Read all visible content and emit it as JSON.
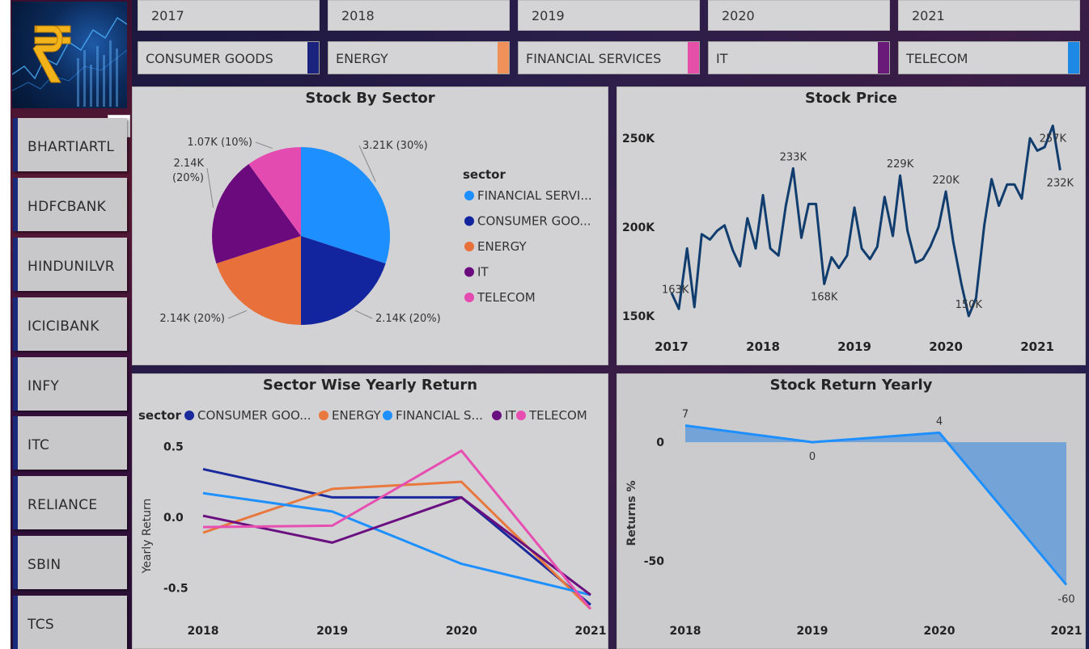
{
  "years": [
    "2017",
    "2018",
    "2019",
    "2020",
    "2021"
  ],
  "sectors": [
    {
      "label": "CONSUMER GOODS",
      "color": "#1a237e"
    },
    {
      "label": "ENERGY",
      "color": "#f0915a"
    },
    {
      "label": "FINANCIAL SERVICES",
      "color": "#e64fa8"
    },
    {
      "label": "IT",
      "color": "#6a1b7a"
    },
    {
      "label": "TELECOM",
      "color": "#1e88e5"
    }
  ],
  "stocks": [
    "BHARTIARTL",
    "HDFCBANK",
    "HINDUNILVR",
    "ICICIBANK",
    "INFY",
    "ITC",
    "RELIANCE",
    "SBIN",
    "TCS"
  ],
  "more_label": "···",
  "panels": {
    "stock_by_sector": {
      "title": "Stock By Sector"
    },
    "stock_price": {
      "title": "Stock Price"
    },
    "sector_wise": {
      "title": "Sector Wise Yearly Return"
    },
    "stock_return": {
      "title": "Stock Return Yearly"
    }
  },
  "chart_data": [
    {
      "type": "pie",
      "title": "Stock By Sector",
      "legend_title": "sector",
      "legend_placement": "right",
      "slices": [
        {
          "name": "FINANCIAL SERVI...",
          "value": 3.21,
          "label": "3.21K (30%)",
          "color": "#1e8fff"
        },
        {
          "name": "CONSUMER GOO...",
          "value": 2.14,
          "label": "2.14K (20%)",
          "color": "#13259e"
        },
        {
          "name": "ENERGY",
          "value": 2.14,
          "label": "2.14K (20%)",
          "color": "#e8703a"
        },
        {
          "name": "IT",
          "value": 2.14,
          "label": "2.14K (20%)",
          "color": "#6b0a7d"
        },
        {
          "name": "TELECOM",
          "value": 1.07,
          "label": "1.07K (10%)",
          "color": "#e44bb1"
        }
      ]
    },
    {
      "type": "line",
      "title": "Stock Price",
      "color": "#103d6e",
      "x_ticks": [
        "2017",
        "2018",
        "2019",
        "2020",
        "2021"
      ],
      "y_ticks": [
        "150K",
        "200K",
        "250K"
      ],
      "ylim": [
        150,
        250
      ],
      "xlim": [
        2017,
        2021.3
      ],
      "x": [
        2017.0,
        2017.08,
        2017.17,
        2017.25,
        2017.33,
        2017.42,
        2017.5,
        2017.58,
        2017.67,
        2017.75,
        2017.83,
        2017.92,
        2018.0,
        2018.08,
        2018.17,
        2018.25,
        2018.33,
        2018.42,
        2018.5,
        2018.58,
        2018.67,
        2018.75,
        2018.83,
        2018.92,
        2019.0,
        2019.08,
        2019.17,
        2019.25,
        2019.33,
        2019.42,
        2019.5,
        2019.58,
        2019.67,
        2019.75,
        2019.83,
        2019.92,
        2020.0,
        2020.08,
        2020.17,
        2020.25,
        2020.33,
        2020.42,
        2020.5,
        2020.58,
        2020.67,
        2020.75,
        2020.83,
        2020.92,
        2021.0,
        2021.08,
        2021.17,
        2021.25
      ],
      "y": [
        163,
        154,
        188,
        155,
        196,
        193,
        198,
        201,
        187,
        178,
        205,
        188,
        218,
        188,
        184,
        212,
        233,
        194,
        213,
        213,
        168,
        183,
        177,
        184,
        211,
        188,
        182,
        189,
        217,
        195,
        229,
        198,
        180,
        182,
        189,
        200,
        220,
        192,
        168,
        150,
        160,
        201,
        227,
        212,
        224,
        224,
        216,
        250,
        243,
        245,
        257,
        232
      ],
      "labels": [
        {
          "x": 2017.0,
          "y": 163,
          "text": "163K",
          "pos": "left"
        },
        {
          "x": 2018.33,
          "y": 233,
          "text": "233K",
          "pos": "above"
        },
        {
          "x": 2018.67,
          "y": 168,
          "text": "168K",
          "pos": "below"
        },
        {
          "x": 2019.5,
          "y": 229,
          "text": "229K",
          "pos": "above"
        },
        {
          "x": 2020.0,
          "y": 220,
          "text": "220K",
          "pos": "above"
        },
        {
          "x": 2020.25,
          "y": 150,
          "text": "150K",
          "pos": "above"
        },
        {
          "x": 2021.17,
          "y": 257,
          "text": "257K",
          "pos": "below"
        },
        {
          "x": 2021.25,
          "y": 232,
          "text": "232K",
          "pos": "below"
        }
      ]
    },
    {
      "type": "line",
      "title": "Sector Wise Yearly Return",
      "ylabel": "Yearly Return",
      "legend_title": "sector",
      "legend_placement": "top",
      "categories": [
        "2018",
        "2019",
        "2020",
        "2021"
      ],
      "y_ticks": [
        "0.5",
        "0.0",
        "-0.5"
      ],
      "ylim": [
        -0.75,
        0.6
      ],
      "series": [
        {
          "name": "CONSUMER GOO...",
          "color": "#1a2a9c",
          "values": [
            0.34,
            0.14,
            0.14,
            -0.62
          ]
        },
        {
          "name": "ENERGY",
          "color": "#e8783e",
          "values": [
            -0.11,
            0.2,
            0.25,
            -0.65
          ]
        },
        {
          "name": "FINANCIAL S...",
          "color": "#1e90ff",
          "values": [
            0.17,
            0.04,
            -0.33,
            -0.55
          ]
        },
        {
          "name": "IT",
          "color": "#6a0f80",
          "values": [
            0.01,
            -0.18,
            0.14,
            -0.55
          ]
        },
        {
          "name": "TELECOM",
          "color": "#e64fb1",
          "values": [
            -0.07,
            -0.06,
            0.47,
            -0.65
          ]
        }
      ]
    },
    {
      "type": "area",
      "title": "Stock Return Yearly",
      "ylabel": "Returns %",
      "categories": [
        "2018",
        "2019",
        "2020",
        "2021"
      ],
      "values": [
        7,
        0,
        4,
        -60
      ],
      "value_labels": [
        "7",
        "0",
        "4",
        "-60"
      ],
      "y_ticks": [
        "0",
        "-50"
      ],
      "ylim": [
        -70,
        15
      ],
      "color": "#1e8fff",
      "fill": "#6a9fd8"
    }
  ]
}
